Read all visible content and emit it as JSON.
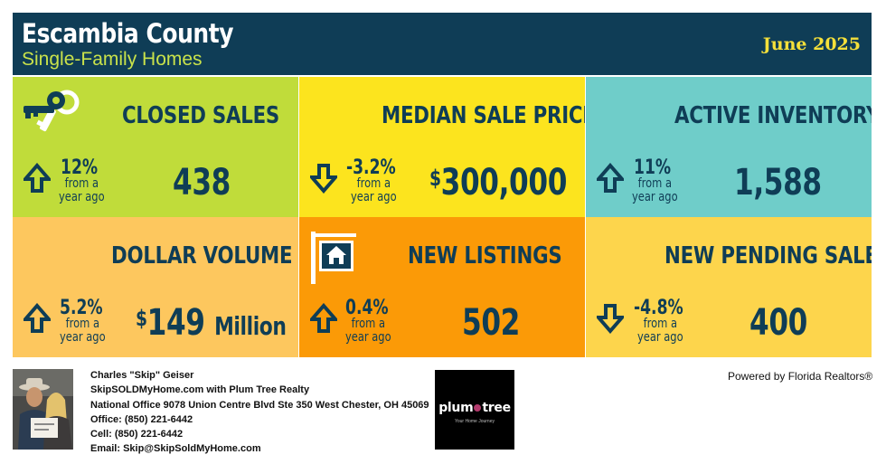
{
  "header": {
    "title": "Escambia County",
    "subtitle": "Single-Family Homes",
    "date": "June 2025"
  },
  "colors": {
    "navy": "#0f3d56",
    "closed_sales_bg": "#c0dc3a",
    "median_price_bg": "#fce41e",
    "active_inventory_bg": "#6fcdc9",
    "dollar_volume_bg": "#fdc75e",
    "new_listings_bg": "#fb9a07",
    "pending_sales_bg": "#fdd54c"
  },
  "tiles": {
    "closed_sales": {
      "label": "CLOSED SALES",
      "change": "12%",
      "direction": "up",
      "change_sub1": "from a",
      "change_sub2": "year ago",
      "value": "438",
      "icon": "keys-icon"
    },
    "median_price": {
      "label": "MEDIAN SALE PRICE",
      "change": "-3.2%",
      "direction": "down",
      "change_sub1": "from a",
      "change_sub2": "year ago",
      "value_prefix": "$",
      "value": "300,000"
    },
    "active_inventory": {
      "label": "ACTIVE INVENTORY",
      "change": "11%",
      "direction": "up",
      "change_sub1": "from a",
      "change_sub2": "year ago",
      "value": "1,588"
    },
    "dollar_volume": {
      "label": "DOLLAR VOLUME",
      "change": "5.2%",
      "direction": "up",
      "change_sub1": "from a",
      "change_sub2": "year ago",
      "value_prefix": "$",
      "value": "149",
      "value_suffix": "Million"
    },
    "new_listings": {
      "label": "NEW LISTINGS",
      "change": "0.4%",
      "direction": "up",
      "change_sub1": "from a",
      "change_sub2": "year ago",
      "value": "502",
      "icon": "house-sign-icon"
    },
    "pending_sales": {
      "label": "NEW PENDING SALES",
      "change": "-4.8%",
      "direction": "down",
      "change_sub1": "from a",
      "change_sub2": "year ago",
      "value": "400"
    }
  },
  "footer": {
    "agent_name": "Charles \"Skip\" Geiser",
    "company_line": "SkipSOLDMyHome.com with Plum Tree Realty",
    "office_address": "National Office 9078 Union Centre Blvd Ste 350 West Chester, OH 45069",
    "office_phone": "Office: (850) 221-6442",
    "cell_phone": "Cell: (850) 221-6442",
    "email": "Email: Skip@SkipSoldMyHome.com",
    "logo_text_left": "plum",
    "logo_text_right": "tree",
    "logo_tagline": "Your Home Journey",
    "powered_by": "Powered by Florida Realtors®"
  }
}
